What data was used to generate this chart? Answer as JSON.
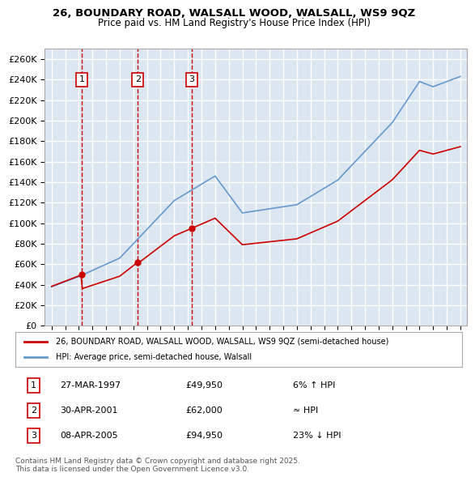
{
  "title1": "26, BOUNDARY ROAD, WALSALL WOOD, WALSALL, WS9 9QZ",
  "title2": "Price paid vs. HM Land Registry's House Price Index (HPI)",
  "ylabel": "",
  "ylim": [
    0,
    270000
  ],
  "yticks": [
    0,
    20000,
    40000,
    60000,
    80000,
    100000,
    120000,
    140000,
    160000,
    180000,
    200000,
    220000,
    240000,
    260000
  ],
  "background_color": "#dce6f1",
  "plot_bg": "#dce6f1",
  "grid_color": "#ffffff",
  "sale_dates": [
    "1997-03-27",
    "2001-04-30",
    "2005-04-08"
  ],
  "sale_prices": [
    49950,
    62000,
    94950
  ],
  "sale_labels": [
    "1",
    "2",
    "3"
  ],
  "legend_red": "26, BOUNDARY ROAD, WALSALL WOOD, WALSALL, WS9 9QZ (semi-detached house)",
  "legend_blue": "HPI: Average price, semi-detached house, Walsall",
  "table_data": [
    [
      "1",
      "27-MAR-1997",
      "£49,950",
      "6% ↑ HPI"
    ],
    [
      "2",
      "30-APR-2001",
      "£62,000",
      "≈ HPI"
    ],
    [
      "3",
      "08-APR-2005",
      "£94,950",
      "23% ↓ HPI"
    ]
  ],
  "footnote": "Contains HM Land Registry data © Crown copyright and database right 2025.\nThis data is licensed under the Open Government Licence v3.0.",
  "red_color": "#cc0000",
  "blue_color": "#6699cc",
  "marker_color": "#cc0000"
}
